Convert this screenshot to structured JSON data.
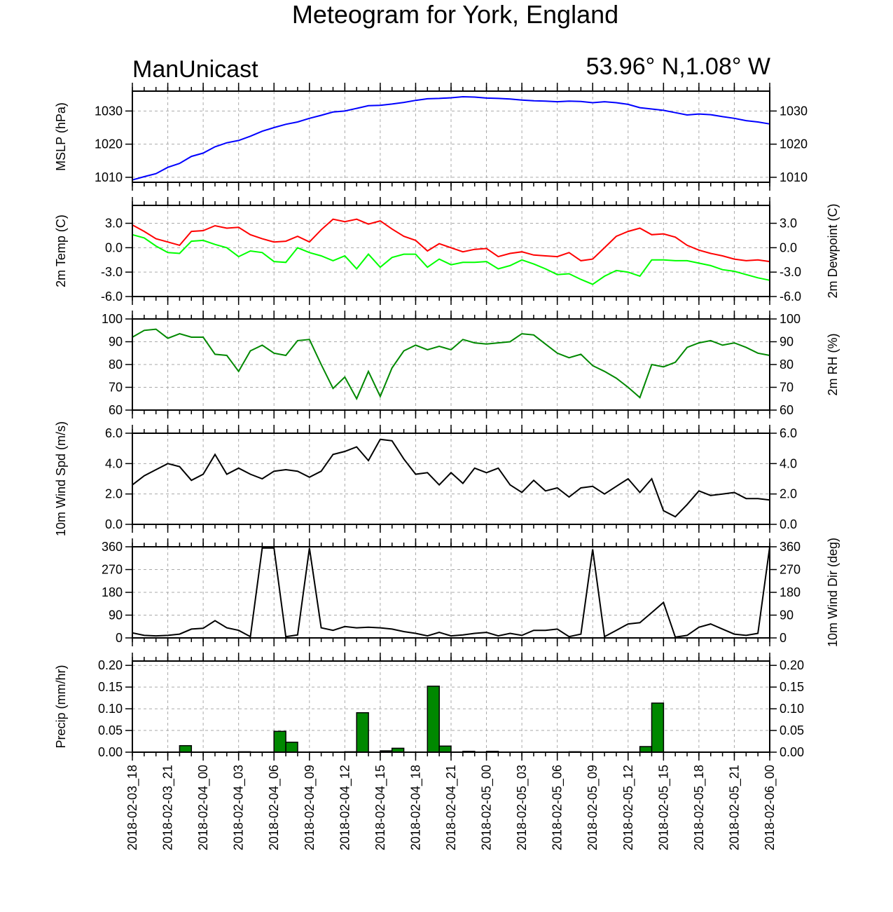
{
  "header": {
    "title": "Meteogram for York, England",
    "left_label": "ManUnicast",
    "right_label": "53.96° N,1.08° W"
  },
  "chart_data": {
    "type": "line",
    "x_labels": [
      "2018-02-03_18",
      "2018-02-03_21",
      "2018-02-04_00",
      "2018-02-04_03",
      "2018-02-04_06",
      "2018-02-04_09",
      "2018-02-04_12",
      "2018-02-04_15",
      "2018-02-04_18",
      "2018-02-04_21",
      "2018-02-05_00",
      "2018-02-05_03",
      "2018-02-05_06",
      "2018-02-05_09",
      "2018-02-05_12",
      "2018-02-05_15",
      "2018-02-05_18",
      "2018-02-05_21",
      "2018-02-06_00"
    ],
    "grid": true,
    "panels": [
      {
        "id": "mslp",
        "ylabel_left": "MSLP (hPa)",
        "ylabel_right": "",
        "ylim": [
          1008.5,
          1036
        ],
        "ticks": [
          1010,
          1020,
          1030
        ],
        "tick_labels": [
          "1010",
          "1020",
          "1030"
        ],
        "series": [
          {
            "type": "line",
            "color": "#0000ff",
            "values": [
              1009.2,
              1010.2,
              1011.1,
              1013.0,
              1014.2,
              1016.3,
              1017.3,
              1019.2,
              1020.4,
              1021.1,
              1022.4,
              1023.9,
              1025.0,
              1026.0,
              1026.7,
              1027.8,
              1028.7,
              1029.7,
              1030.0,
              1030.8,
              1031.6,
              1031.7,
              1032.1,
              1032.6,
              1033.2,
              1033.7,
              1033.8,
              1034.0,
              1034.3,
              1034.2,
              1033.9,
              1033.8,
              1033.6,
              1033.3,
              1033.1,
              1033.0,
              1032.8,
              1033.0,
              1032.9,
              1032.5,
              1032.8,
              1032.5,
              1032.0,
              1031.0,
              1030.6,
              1030.2,
              1029.5,
              1028.8,
              1029.1,
              1028.9,
              1028.3,
              1027.8,
              1027.1,
              1026.7,
              1026.1
            ]
          }
        ]
      },
      {
        "id": "temp",
        "ylabel_left": "2m Temp (C)",
        "ylabel_right": "2m Dewpoint (C)",
        "ylim": [
          -6,
          5.2
        ],
        "ticks": [
          -6,
          -3,
          0,
          3
        ],
        "tick_labels": [
          "-6.0",
          "-3.0",
          "0.0",
          "3.0"
        ],
        "series": [
          {
            "type": "line",
            "color": "#ff0000",
            "values": [
              2.8,
              2.0,
              1.1,
              0.7,
              0.3,
              2.0,
              2.1,
              2.7,
              2.4,
              2.5,
              1.6,
              1.1,
              0.7,
              0.8,
              1.4,
              0.7,
              2.2,
              3.5,
              3.2,
              3.5,
              2.9,
              3.3,
              2.3,
              1.4,
              0.9,
              -0.4,
              0.5,
              0.0,
              -0.5,
              -0.2,
              -0.1,
              -1.1,
              -0.7,
              -0.5,
              -0.9,
              -1.0,
              -1.1,
              -0.6,
              -1.6,
              -1.4,
              0.0,
              1.4,
              2.0,
              2.4,
              1.6,
              1.7,
              1.3,
              0.3,
              -0.3,
              -0.7,
              -1.0,
              -1.4,
              -1.6,
              -1.5,
              -1.7
            ]
          },
          {
            "type": "line",
            "color": "#00ff00",
            "values": [
              1.6,
              1.2,
              0.2,
              -0.6,
              -0.7,
              0.8,
              0.9,
              0.4,
              0.0,
              -1.1,
              -0.4,
              -0.6,
              -1.7,
              -1.8,
              0.0,
              -0.6,
              -1.0,
              -1.6,
              -1.0,
              -2.6,
              -0.8,
              -2.4,
              -1.2,
              -0.8,
              -0.8,
              -2.4,
              -1.4,
              -2.1,
              -1.8,
              -1.8,
              -1.7,
              -2.6,
              -2.2,
              -1.5,
              -2.0,
              -2.6,
              -3.3,
              -3.2,
              -3.9,
              -4.5,
              -3.5,
              -2.8,
              -3.0,
              -3.5,
              -1.5,
              -1.5,
              -1.6,
              -1.6,
              -1.9,
              -2.2,
              -2.7,
              -2.9,
              -3.3,
              -3.7,
              -4.0
            ]
          }
        ]
      },
      {
        "id": "rh",
        "ylabel_left": "",
        "ylabel_right": "2m RH (%)",
        "ylim": [
          60,
          100
        ],
        "ticks": [
          60,
          70,
          80,
          90,
          100
        ],
        "tick_labels": [
          "60",
          "70",
          "80",
          "90",
          "100"
        ],
        "series": [
          {
            "type": "line",
            "color": "#008800",
            "values": [
              92,
              95,
              95.5,
              91.5,
              93.5,
              92,
              92,
              84.5,
              84,
              77,
              86,
              88.5,
              85,
              84,
              90.5,
              91,
              80,
              69.5,
              74.5,
              65,
              77,
              66,
              78.5,
              86,
              88.5,
              86.5,
              88,
              86.5,
              91,
              89.5,
              89,
              89.5,
              90,
              93.5,
              93,
              89,
              85,
              83,
              84.5,
              79.5,
              77,
              74,
              70,
              65.5,
              80,
              79,
              81,
              87.5,
              89.5,
              90.5,
              88.5,
              89.5,
              87.5,
              85,
              84
            ]
          }
        ]
      },
      {
        "id": "wind",
        "ylabel_left": "10m Wind Spd (m/s)",
        "ylabel_right": "",
        "ylim": [
          0,
          6
        ],
        "ticks": [
          0,
          2,
          4,
          6
        ],
        "tick_labels": [
          "0.0",
          "2.0",
          "4.0",
          "6.0"
        ],
        "series": [
          {
            "type": "line",
            "color": "#000000",
            "values": [
              2.6,
              3.2,
              3.6,
              4.0,
              3.8,
              2.9,
              3.3,
              4.6,
              3.3,
              3.7,
              3.3,
              3.0,
              3.5,
              3.6,
              3.5,
              3.1,
              3.5,
              4.6,
              4.8,
              5.1,
              4.2,
              5.6,
              5.5,
              4.3,
              3.3,
              3.4,
              2.6,
              3.4,
              2.7,
              3.7,
              3.4,
              3.7,
              2.6,
              2.1,
              2.9,
              2.2,
              2.4,
              1.8,
              2.4,
              2.5,
              2.0,
              2.5,
              3.0,
              2.1,
              3.0,
              0.9,
              0.5,
              1.3,
              2.2,
              1.9,
              2.0,
              2.1,
              1.7,
              1.7,
              1.6
            ]
          }
        ]
      },
      {
        "id": "wdir",
        "ylabel_left": "",
        "ylabel_right": "10m Wind Dir (deg)",
        "ylim": [
          0,
          360
        ],
        "ticks": [
          0,
          90,
          180,
          270,
          360
        ],
        "tick_labels": [
          "0",
          "90",
          "180",
          "270",
          "360"
        ],
        "series": [
          {
            "type": "line",
            "color": "#000000",
            "values": [
              20,
              10,
              8,
              10,
              15,
              35,
              38,
              68,
              40,
              30,
              5,
              355,
              355,
              5,
              12,
              355,
              40,
              30,
              45,
              40,
              42,
              40,
              35,
              25,
              18,
              8,
              22,
              8,
              12,
              18,
              22,
              8,
              18,
              10,
              30,
              30,
              35,
              5,
              15,
              350,
              5,
              30,
              55,
              60,
              100,
              140,
              3,
              10,
              42,
              55,
              35,
              15,
              10,
              18,
              360
            ]
          }
        ]
      },
      {
        "id": "precip",
        "ylabel_left": "Precip (mm/hr)",
        "ylabel_right": "",
        "ylim": [
          0,
          0.21
        ],
        "ticks": [
          0,
          0.05,
          0.1,
          0.15,
          0.2
        ],
        "tick_labels": [
          "0.00",
          "0.05",
          "0.10",
          "0.15",
          "0.20"
        ],
        "series": [
          {
            "type": "bar",
            "color": "#008800",
            "values": [
              0,
              0,
              0,
              0,
              0.015,
              0,
              0,
              0,
              0,
              0.001,
              0,
              0,
              0.048,
              0.023,
              0,
              0,
              0,
              0,
              0.001,
              0.091,
              0,
              0.003,
              0.009,
              0,
              0,
              0.152,
              0.014,
              0,
              0.002,
              0,
              0.002,
              0,
              0,
              0,
              0,
              0,
              0,
              0.001,
              0,
              0,
              0,
              0,
              0,
              0.013,
              0.113,
              0,
              0,
              0,
              0,
              0,
              0,
              0,
              0,
              0,
              0
            ]
          }
        ]
      }
    ]
  }
}
